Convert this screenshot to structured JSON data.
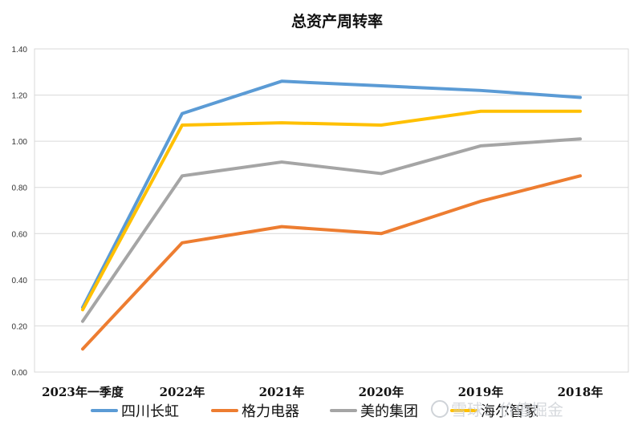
{
  "chart_data": {
    "type": "line",
    "title": "总资产周转率",
    "categories": [
      "2023年一季度",
      "2022年",
      "2021年",
      "2020年",
      "2019年",
      "2018年"
    ],
    "ylim": [
      0,
      1.4
    ],
    "yticks": [
      "0.00",
      "0.20",
      "0.40",
      "0.60",
      "0.80",
      "1.00",
      "1.20",
      "1.40"
    ],
    "grid": true,
    "legend_position": "bottom",
    "series": [
      {
        "name": "四川长虹",
        "color": "#5b9bd5",
        "values": [
          0.28,
          1.12,
          1.26,
          1.24,
          1.22,
          1.19
        ]
      },
      {
        "name": "格力电器",
        "color": "#ed7d31",
        "values": [
          0.1,
          0.56,
          0.63,
          0.6,
          0.74,
          0.85
        ]
      },
      {
        "name": "美的集团",
        "color": "#a5a5a5",
        "values": [
          0.22,
          0.85,
          0.91,
          0.86,
          0.98,
          1.01
        ]
      },
      {
        "name": "海尔智家",
        "color": "#ffc000",
        "values": [
          0.27,
          1.07,
          1.08,
          1.07,
          1.13,
          1.13
        ]
      }
    ]
  },
  "watermark": {
    "text": "雪球：价值掘金"
  }
}
